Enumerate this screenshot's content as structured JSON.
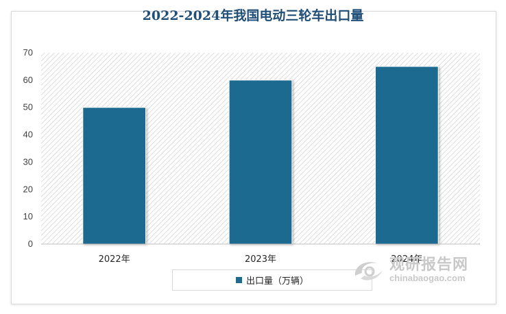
{
  "chart_data": {
    "type": "bar",
    "title": "2022-2024年我国电动三轮车出口量",
    "categories": [
      "2022年",
      "2023年",
      "2024年"
    ],
    "series": [
      {
        "name": "出口量（万辆）",
        "values": [
          50,
          60,
          65
        ],
        "color": "#1b6a8f"
      }
    ],
    "ylim": [
      0,
      70
    ],
    "yticks": [
      0,
      10,
      20,
      30,
      40,
      50,
      60,
      70
    ],
    "xlabel": "",
    "ylabel": "",
    "legend": "bottom-center",
    "plot_background": "diagonal-hatch"
  },
  "watermark": {
    "name_cn": "观研报告网",
    "domain": "chinabaogao.com",
    "icon": "swirl-logo-icon"
  }
}
